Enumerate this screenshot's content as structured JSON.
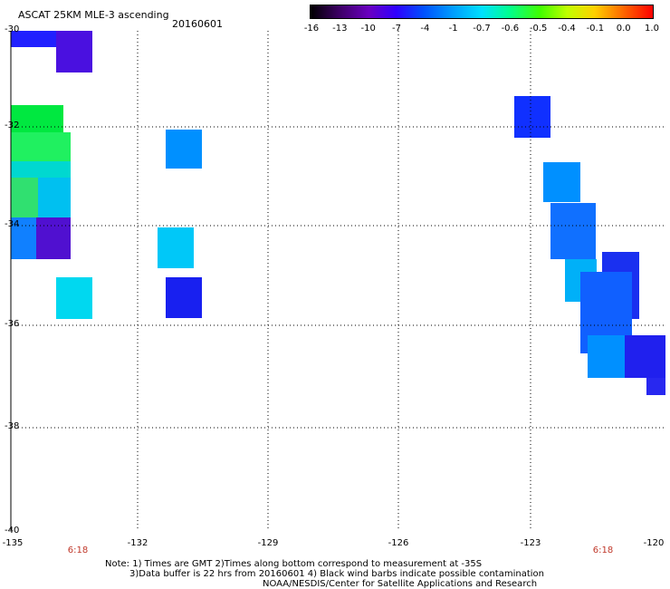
{
  "header": {
    "title": "ASCAT 25KM MLE-3 ascending",
    "date": "20160601"
  },
  "colorbar": {
    "labels": [
      "-16",
      "-13",
      "-10",
      "-7",
      "-4",
      "-1",
      "-0.7",
      "-0.6",
      "-0.5",
      "-0.4",
      "-0.1",
      "0.0",
      "1.0"
    ],
    "colors": [
      "#000000",
      "#3a0060",
      "#6a00c0",
      "#3000ff",
      "#0050ff",
      "#00a0ff",
      "#00e0ff",
      "#00ff90",
      "#40ff00",
      "#c0ff00",
      "#ffd000",
      "#ff6000",
      "#ff0000"
    ]
  },
  "axes": {
    "lat_labels": [
      "-30",
      "-32",
      "-34",
      "-36",
      "-38",
      "-40"
    ],
    "lon_labels": [
      "-135",
      "-132",
      "-129",
      "-126",
      "-123",
      "-120"
    ],
    "time_labels": [
      "6:18",
      "6:18"
    ]
  },
  "notes": {
    "line1": "Note: 1) Times are GMT 2)Times along bottom correspond to measurement at -35S",
    "line2": "3)Data buffer is 22 hrs from 20160601 4) Black wind barbs indicate possible contamination",
    "line3": "NOAA/NESDIS/Center for Satellite Applications and Research"
  }
}
